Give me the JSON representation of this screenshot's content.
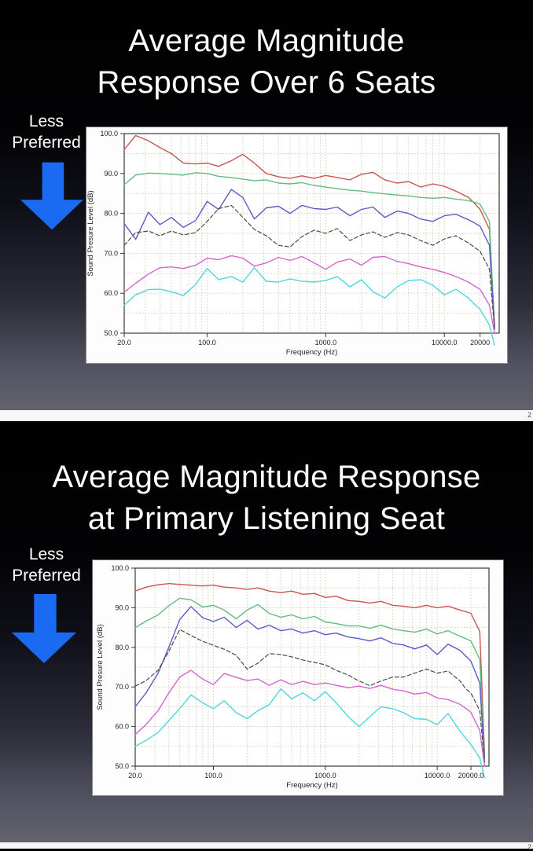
{
  "page": {
    "separator_page_number": "2",
    "footer_page_number": "2"
  },
  "colors": {
    "arrow_blue": "#1a6af2",
    "slide_text": "#ffffff",
    "chart_bg": "#fdfdfd",
    "grid_line": "#ccc8b6",
    "axis_line": "#3a3a3a",
    "axis_text": "#222222"
  },
  "slides": [
    {
      "title_line1": "Average Magnitude",
      "title_line2": "Response Over 6 Seats",
      "annotation_line1": "Less",
      "annotation_line2": "Preferred",
      "arrow_direction": "down",
      "chart_data": {
        "type": "line",
        "title": "",
        "xlabel": "Frequency (Hz)",
        "ylabel": "Sound Presure Level (dB)",
        "x_scale": "log",
        "xlim": [
          20,
          29000
        ],
        "ylim": [
          50,
          100
        ],
        "grid": "dotted",
        "legend": "none",
        "x_ticks": [
          {
            "f": 20,
            "label": "20.0"
          },
          {
            "f": 100,
            "label": "100.0"
          },
          {
            "f": 1000,
            "label": "1000.0"
          },
          {
            "f": 10000,
            "label": "10000.0"
          },
          {
            "f": 20000,
            "label": "20000"
          }
        ],
        "y_ticks": [
          {
            "v": 100,
            "label": "100.0"
          },
          {
            "v": 90,
            "label": "90.0"
          },
          {
            "v": 80,
            "label": "80.0"
          },
          {
            "v": 70,
            "label": "70.0"
          },
          {
            "v": 60,
            "label": "60.0"
          },
          {
            "v": 50,
            "label": "50.0"
          }
        ],
        "grid_db_step": 5,
        "grid_minor_freqs": [
          30,
          40,
          50,
          60,
          70,
          80,
          90,
          100,
          200,
          300,
          400,
          500,
          600,
          700,
          800,
          900,
          1000,
          2000,
          3000,
          4000,
          5000,
          6000,
          7000,
          8000,
          9000,
          10000,
          20000
        ],
        "x": [
          20,
          25,
          32,
          40,
          50,
          63,
          80,
          100,
          125,
          160,
          200,
          250,
          315,
          400,
          500,
          630,
          800,
          1000,
          1250,
          1600,
          2000,
          2500,
          3150,
          4000,
          5000,
          6300,
          8000,
          10000,
          12500,
          16000,
          18000,
          20000,
          24000,
          26500
        ],
        "series": [
          {
            "name": "red",
            "color": "#c9564f",
            "dash": null,
            "values": [
              96,
              99.5,
              98.2,
              96.5,
              95,
              92.6,
              92.4,
              92.6,
              91.8,
              93.2,
              94.8,
              92.6,
              90,
              89.2,
              88.8,
              89.4,
              88.8,
              89.5,
              89,
              88.4,
              89.8,
              90.3,
              88.4,
              87.6,
              88,
              86.6,
              87.4,
              86.8,
              85.6,
              84,
              82.5,
              81,
              76,
              52
            ]
          },
          {
            "name": "green",
            "color": "#64bb80",
            "dash": null,
            "values": [
              87.2,
              89.6,
              90.1,
              90,
              89.8,
              89.6,
              90.2,
              90,
              89.3,
              89,
              88.6,
              88.2,
              88.4,
              87.6,
              87.4,
              87.7,
              87,
              86.6,
              86.2,
              85.8,
              85.6,
              85.2,
              84.9,
              84.6,
              84.4,
              84,
              83.8,
              84,
              83.6,
              83.2,
              82.8,
              82.3,
              78,
              51
            ]
          },
          {
            "name": "blue",
            "color": "#5b5bc8",
            "dash": null,
            "values": [
              77.5,
              73.5,
              80.3,
              77.2,
              79,
              76.5,
              78.2,
              83,
              81,
              86,
              84,
              78.6,
              81.4,
              81.8,
              80,
              82,
              81.2,
              81,
              81.6,
              79.4,
              81,
              81.6,
              79,
              80.6,
              80,
              78.6,
              78,
              79.4,
              79.8,
              78.4,
              77.6,
              76.8,
              72,
              51
            ]
          },
          {
            "name": "black-dashed",
            "color": "#4a4a4a",
            "dash": "5,3",
            "values": [
              72,
              75.2,
              75.6,
              74.4,
              75.6,
              74.6,
              75.2,
              78,
              81.2,
              82,
              79,
              76,
              74.4,
              72,
              71.6,
              74.2,
              75.8,
              75,
              76.2,
              73.2,
              74.6,
              75.4,
              74,
              75.2,
              74.6,
              73.2,
              72,
              73.6,
              74.4,
              72.6,
              71.5,
              70.5,
              66,
              51
            ]
          },
          {
            "name": "magenta",
            "color": "#d267cc",
            "dash": null,
            "values": [
              60.3,
              62.5,
              64.8,
              66.4,
              66.6,
              66.2,
              67,
              68.8,
              68.4,
              69.4,
              68.8,
              66.8,
              67.6,
              69,
              68.2,
              69.2,
              67.6,
              66,
              67.8,
              68.6,
              67,
              69,
              69.2,
              68,
              67.4,
              66.6,
              66,
              65.2,
              64.2,
              62.8,
              61.8,
              61,
              57,
              50
            ]
          },
          {
            "name": "cyan",
            "color": "#4fd7dc",
            "dash": null,
            "values": [
              57,
              59.6,
              60.9,
              61,
              60.4,
              59.4,
              62.2,
              66.2,
              63.4,
              64.2,
              62.8,
              66.4,
              63,
              62.8,
              63.6,
              63,
              62.8,
              63.2,
              64.2,
              61.6,
              63.4,
              60.4,
              58.8,
              61.6,
              63.2,
              63.4,
              62,
              59.6,
              61,
              58.8,
              57.2,
              56,
              52,
              47
            ]
          }
        ]
      }
    },
    {
      "title_line1": "Average Magnitude Response",
      "title_line2": "at Primary Listening Seat",
      "annotation_line1": "Less",
      "annotation_line2": "Preferred",
      "arrow_direction": "down",
      "chart_data": {
        "type": "line",
        "title": "",
        "xlabel": "Frequency (Hz)",
        "ylabel": "Sound Presure Level (dB)",
        "x_scale": "log",
        "xlim": [
          20,
          29000
        ],
        "ylim": [
          50,
          100
        ],
        "grid": "dotted",
        "legend": "none",
        "x_ticks": [
          {
            "f": 20,
            "label": "20.0"
          },
          {
            "f": 100,
            "label": "100.0"
          },
          {
            "f": 1000,
            "label": "1000.0"
          },
          {
            "f": 10000,
            "label": "10000.0"
          },
          {
            "f": 20000,
            "label": "20000.0"
          }
        ],
        "y_ticks": [
          {
            "v": 100,
            "label": "100.0"
          },
          {
            "v": 90,
            "label": "90.0"
          },
          {
            "v": 80,
            "label": "80.0"
          },
          {
            "v": 70,
            "label": "70.0"
          },
          {
            "v": 60,
            "label": "60.0"
          },
          {
            "v": 50,
            "label": "50.0"
          }
        ],
        "grid_db_step": 5,
        "grid_minor_freqs": [
          30,
          40,
          50,
          60,
          70,
          80,
          90,
          100,
          200,
          300,
          400,
          500,
          600,
          700,
          800,
          900,
          1000,
          2000,
          3000,
          4000,
          5000,
          6000,
          7000,
          8000,
          9000,
          10000,
          20000
        ],
        "x": [
          20,
          25,
          32,
          40,
          50,
          63,
          80,
          100,
          125,
          160,
          200,
          250,
          315,
          400,
          500,
          630,
          800,
          1000,
          1250,
          1600,
          2000,
          2500,
          3150,
          4000,
          5000,
          6300,
          8000,
          10000,
          12500,
          16000,
          18000,
          20000,
          24000,
          26500
        ],
        "series": [
          {
            "name": "red",
            "color": "#c9564f",
            "dash": null,
            "values": [
              94.2,
              95.2,
              95.8,
              96.1,
              95.9,
              95.7,
              95.5,
              95.7,
              95.2,
              95,
              94.6,
              95,
              94.2,
              93.8,
              94.2,
              93.4,
              93.6,
              92.6,
              92.9,
              91.8,
              91.6,
              91.2,
              91.6,
              90.6,
              90.4,
              90,
              90.6,
              90,
              90.4,
              89.4,
              89,
              88.6,
              84,
              53
            ]
          },
          {
            "name": "green",
            "color": "#64bb80",
            "dash": null,
            "values": [
              85,
              86.6,
              88.2,
              90.5,
              92.4,
              92,
              90.2,
              90.6,
              89.4,
              87.2,
              89.4,
              90.8,
              88.6,
              87.6,
              88.2,
              87.2,
              87.8,
              86.4,
              86,
              85.4,
              85.4,
              84.8,
              85.6,
              84.6,
              84.2,
              83.8,
              84.6,
              83.4,
              84.2,
              82.8,
              82.2,
              81.6,
              77,
              52
            ]
          },
          {
            "name": "blue",
            "color": "#5b5bc8",
            "dash": null,
            "values": [
              65,
              68.5,
              73.5,
              80,
              87,
              90.3,
              87.5,
              86.5,
              87.6,
              85,
              86.8,
              84.6,
              85.6,
              84.2,
              84.6,
              83.6,
              84.2,
              83.2,
              83.6,
              82.6,
              82.2,
              81.6,
              82.4,
              81,
              80.6,
              79.6,
              80.6,
              78.2,
              80.8,
              79.2,
              77.8,
              76.5,
              71,
              51
            ]
          },
          {
            "name": "black-dashed",
            "color": "#4a4a4a",
            "dash": "5,3",
            "values": [
              70.2,
              71.6,
              74.2,
              79,
              84.5,
              83,
              81.5,
              80.5,
              79.5,
              78,
              74.5,
              76,
              78.4,
              78.2,
              77.6,
              76.8,
              76.2,
              75.6,
              74.2,
              73,
              71.5,
              70.3,
              71.5,
              72.5,
              72.5,
              73.5,
              74.5,
              73.5,
              74,
              71.5,
              69.5,
              68.5,
              64,
              51
            ]
          },
          {
            "name": "magenta",
            "color": "#d267cc",
            "dash": null,
            "values": [
              58,
              60.5,
              64,
              68.5,
              72.5,
              74.2,
              72,
              70.6,
              73.4,
              72.4,
              71.6,
              72,
              70.4,
              71.8,
              70.6,
              71.4,
              70.6,
              71,
              70.4,
              69.8,
              70.2,
              69.6,
              70.4,
              69.4,
              69,
              68.2,
              68.6,
              67.2,
              66.8,
              65.6,
              64.6,
              63.6,
              59,
              50
            ]
          },
          {
            "name": "cyan",
            "color": "#4fd7dc",
            "dash": null,
            "values": [
              55,
              56.5,
              58.5,
              61.5,
              64.5,
              68,
              66,
              64.5,
              66.5,
              63.5,
              62,
              64,
              65.5,
              69.5,
              67,
              68.5,
              66.5,
              68.8,
              66,
              62.5,
              60,
              62.5,
              65,
              64.5,
              63.5,
              62,
              61.8,
              60.5,
              63.3,
              58.8,
              57,
              55.5,
              52,
              47
            ]
          }
        ]
      }
    }
  ]
}
